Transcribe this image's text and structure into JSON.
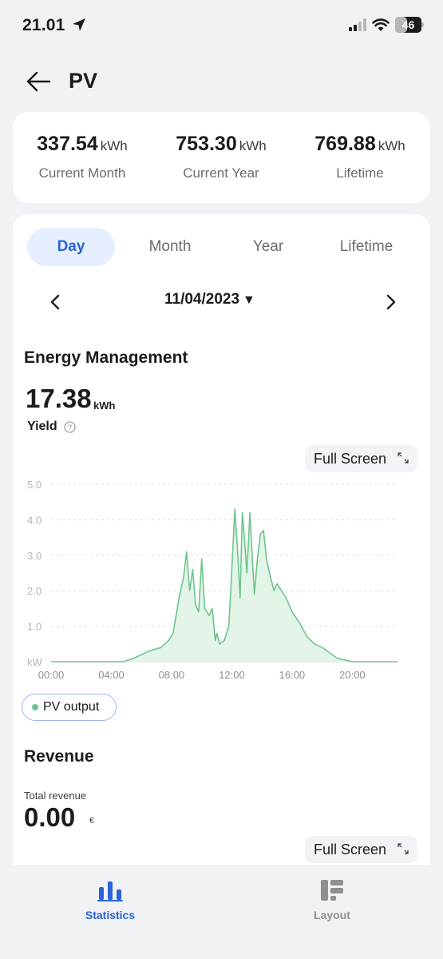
{
  "status_bar": {
    "time": "21.01",
    "battery": "46",
    "battery_level": 0.46
  },
  "header": {
    "title": "PV"
  },
  "summary": [
    {
      "value": "337.54",
      "unit": "kWh",
      "label": "Current Month"
    },
    {
      "value": "753.30",
      "unit": "kWh",
      "label": "Current Year"
    },
    {
      "value": "769.88",
      "unit": "kWh",
      "label": "Lifetime"
    }
  ],
  "period_tabs": [
    {
      "label": "Day",
      "active": true
    },
    {
      "label": "Month",
      "active": false
    },
    {
      "label": "Year",
      "active": false
    },
    {
      "label": "Lifetime",
      "active": false
    }
  ],
  "date": {
    "value": "11/04/2023",
    "caret": "▼"
  },
  "energy": {
    "title": "Energy Management",
    "yield_value": "17.38",
    "yield_unit": "kWh",
    "yield_label": "Yield",
    "full_screen": "Full Screen",
    "legend": "PV output"
  },
  "revenue": {
    "title": "Revenue",
    "label": "Total revenue",
    "value": "0.00",
    "unit": "€",
    "full_screen": "Full Screen"
  },
  "bottom_nav": [
    {
      "label": "Statistics",
      "active": true,
      "icon": "bar-chart-icon"
    },
    {
      "label": "Layout",
      "active": false,
      "icon": "layout-icon"
    }
  ],
  "colors": {
    "accent": "#2a63d6",
    "series": "#6fc48c",
    "series_fill": "#e3f4e8"
  },
  "chart_data": {
    "type": "area",
    "ylabel": "kW",
    "ylim": [
      0,
      5
    ],
    "yticks": [
      "5.0",
      "4.0",
      "3.0",
      "2.0",
      "1.0"
    ],
    "xticks": [
      "00:00",
      "04:00",
      "08:00",
      "12:00",
      "16:00",
      "20:00"
    ],
    "xlim": [
      0,
      23
    ],
    "grid": true,
    "series": [
      {
        "name": "PV output",
        "x": [
          0,
          4.8,
          5.5,
          6.5,
          7.3,
          7.8,
          8.1,
          8.3,
          8.5,
          8.8,
          9.0,
          9.2,
          9.4,
          9.6,
          9.8,
          10.0,
          10.2,
          10.5,
          10.7,
          10.9,
          11.0,
          11.2,
          11.5,
          11.8,
          12.0,
          12.2,
          12.4,
          12.55,
          12.7,
          12.85,
          13.0,
          13.2,
          13.4,
          13.5,
          13.7,
          13.9,
          14.1,
          14.3,
          14.5,
          14.8,
          15.0,
          15.3,
          15.6,
          16.0,
          16.5,
          17.0,
          17.5,
          18.0,
          18.5,
          19.0,
          19.5,
          20.0,
          23
        ],
        "y": [
          0,
          0,
          0.1,
          0.3,
          0.4,
          0.6,
          0.8,
          1.3,
          1.8,
          2.4,
          3.1,
          2.0,
          2.6,
          1.6,
          1.4,
          2.9,
          1.5,
          1.3,
          1.5,
          0.6,
          0.8,
          0.5,
          0.6,
          1.0,
          2.6,
          4.3,
          3.0,
          1.8,
          4.2,
          3.4,
          2.5,
          4.2,
          2.6,
          1.9,
          2.9,
          3.6,
          3.7,
          2.9,
          2.5,
          2.0,
          2.2,
          2.0,
          1.8,
          1.4,
          1.1,
          0.7,
          0.5,
          0.4,
          0.25,
          0.1,
          0.05,
          0,
          0
        ]
      }
    ]
  }
}
